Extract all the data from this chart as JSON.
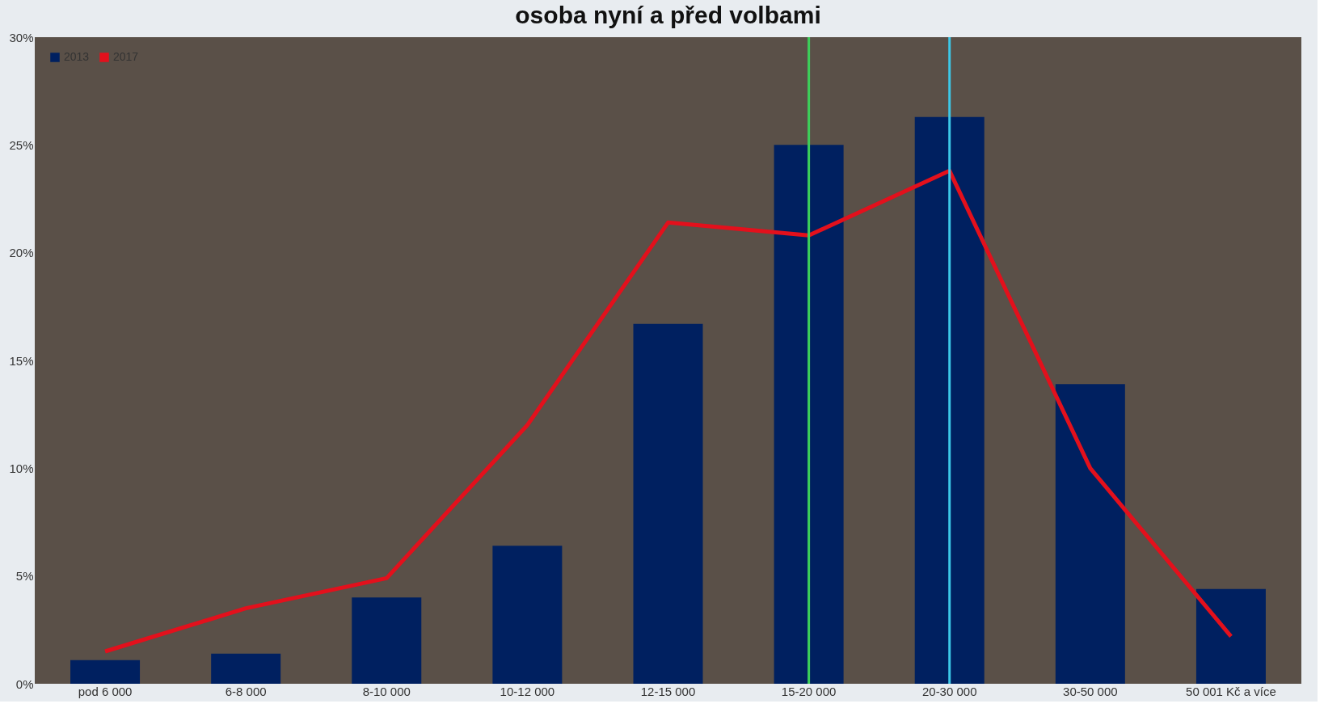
{
  "chart_data": {
    "type": "bar",
    "title": "osoba nyní a před volbami",
    "categories": [
      "pod  6 000",
      "6-8 000",
      "8-10 000",
      "10-12 000",
      "12-15 000",
      "15-20 000",
      "20-30 000",
      "30-50 000",
      "50 001 Kč a více"
    ],
    "series": [
      {
        "name": "2013",
        "color": "#002060",
        "values": [
          1.1,
          1.4,
          4.0,
          6.4,
          16.7,
          25.0,
          26.3,
          13.9,
          4.4
        ]
      },
      {
        "name": "2017",
        "type": "line",
        "color": "#e3101c",
        "values": [
          1.5,
          3.5,
          4.9,
          12.0,
          21.4,
          20.8,
          23.8,
          10.0,
          2.2
        ]
      }
    ],
    "ylim": [
      0,
      30
    ],
    "yticks": [
      {
        "value": 0,
        "label": "0%"
      },
      {
        "value": 5,
        "label": "5%"
      },
      {
        "value": 10,
        "label": "10%"
      },
      {
        "value": 15,
        "label": "15%"
      },
      {
        "value": 20,
        "label": "20%"
      },
      {
        "value": 25,
        "label": "25%"
      },
      {
        "value": 30,
        "label": "30%"
      }
    ],
    "ref_lines": [
      {
        "axis": "x",
        "value": "15-20 000",
        "color": "#3ccf5a"
      },
      {
        "axis": "x",
        "value": "20-30 000",
        "color": "#3cc8e8"
      }
    ],
    "legend": "top left",
    "grid": false
  }
}
